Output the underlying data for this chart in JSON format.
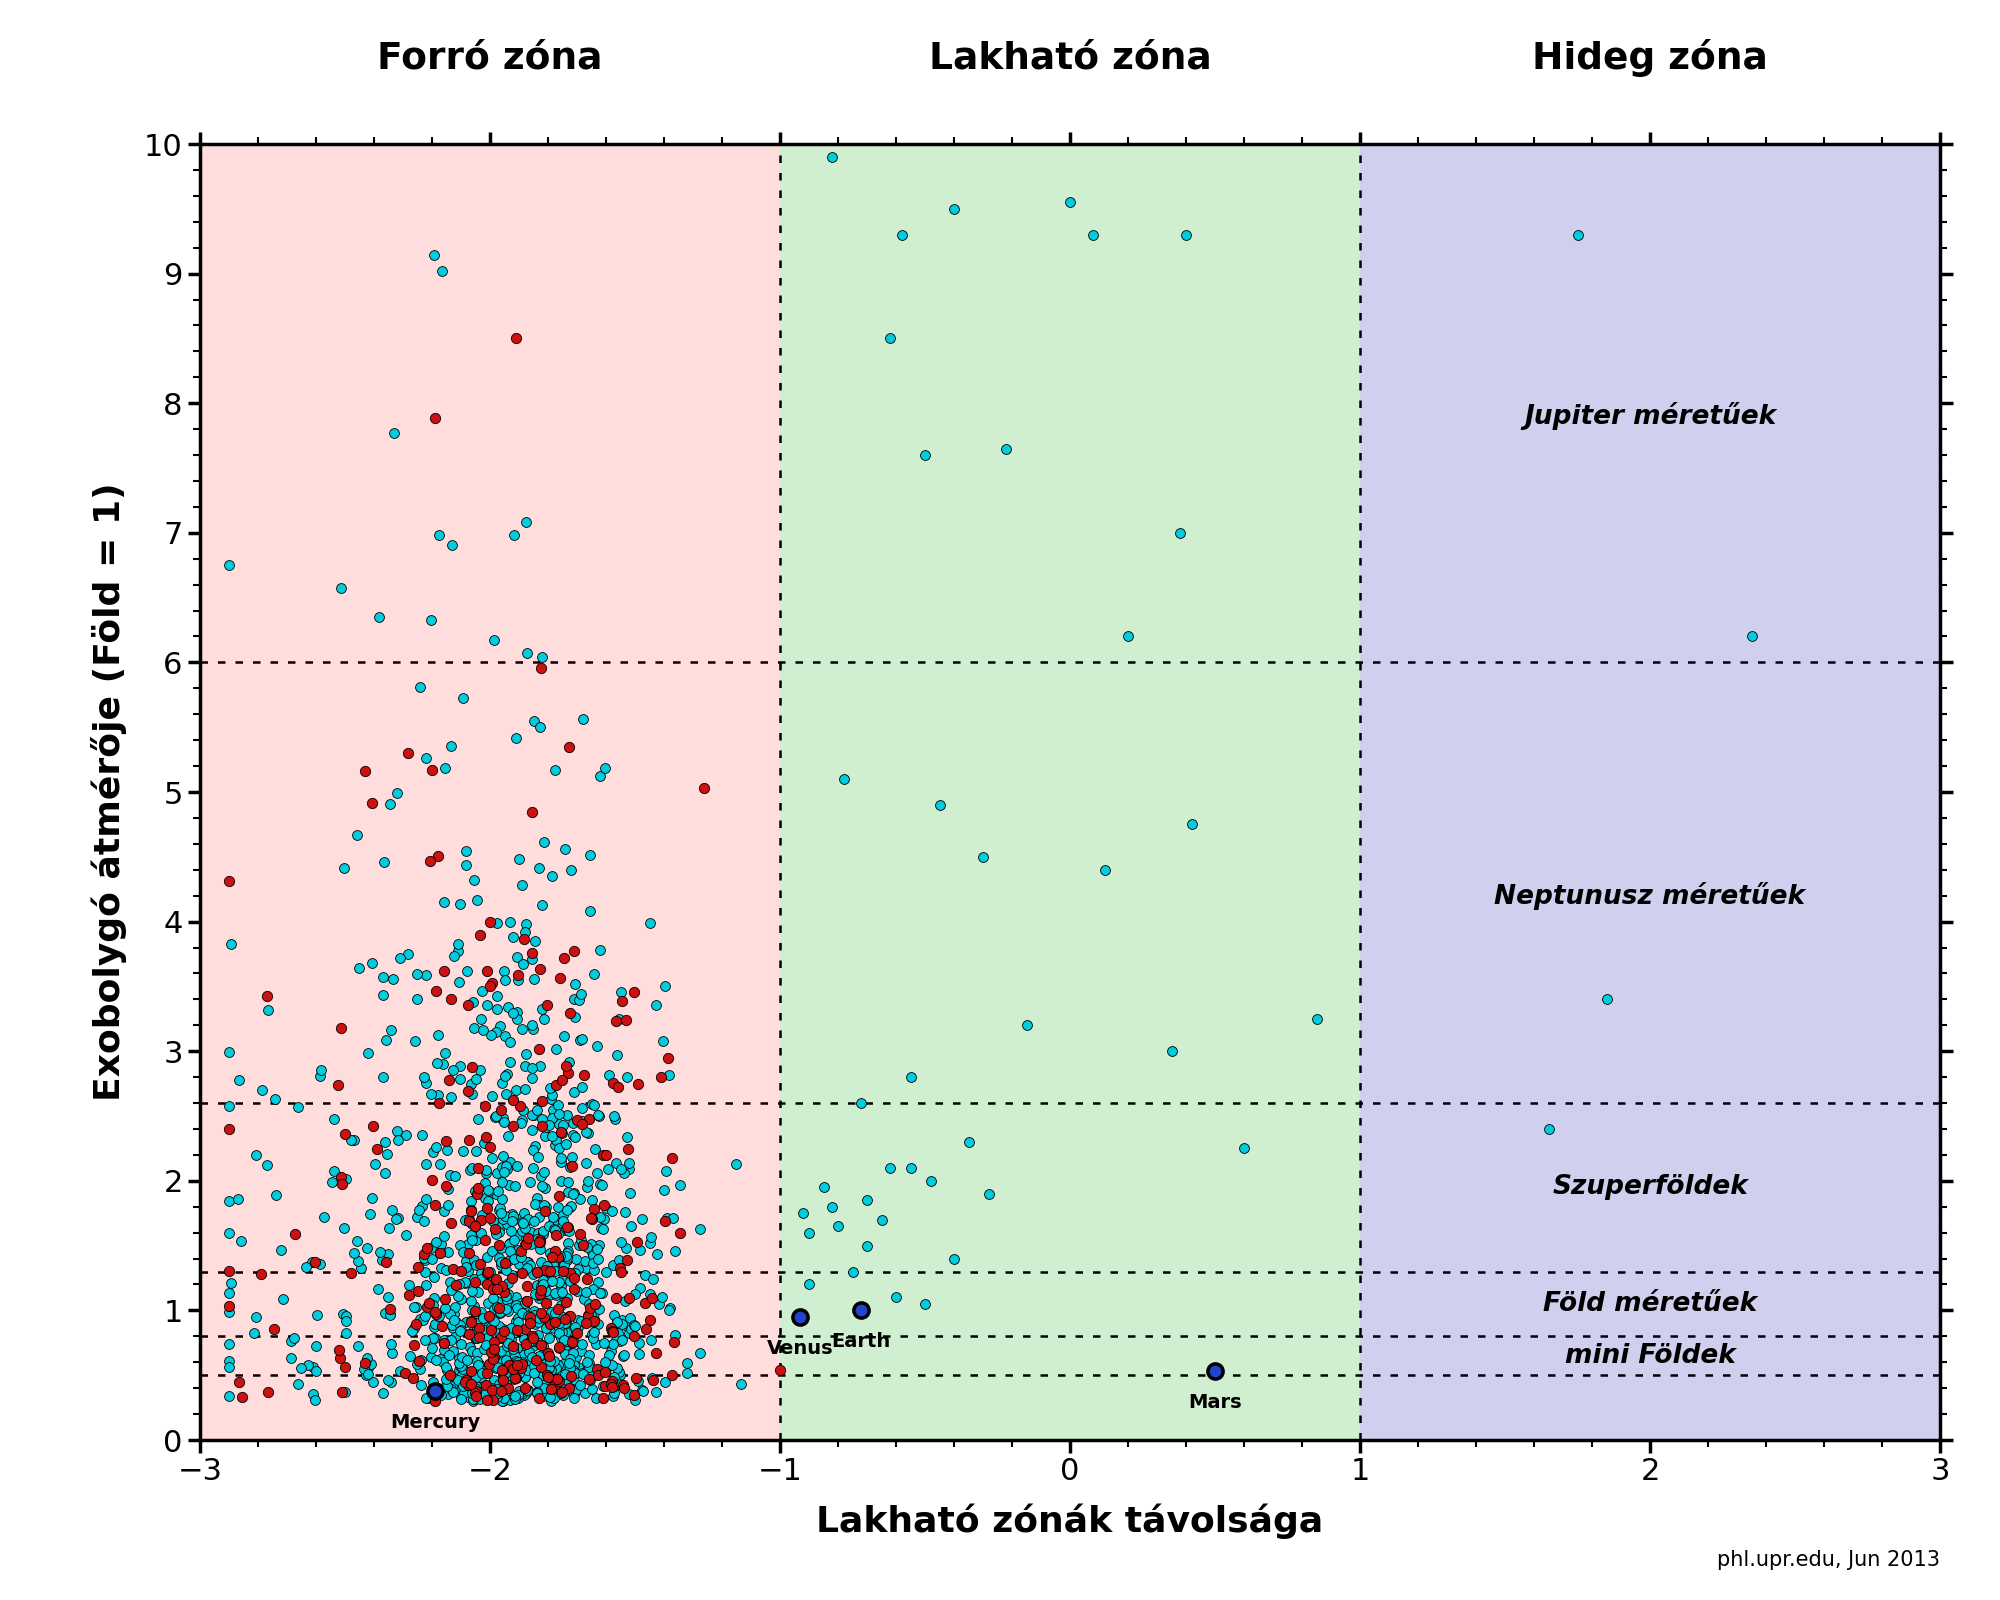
{
  "title_hot": "Forró zóna",
  "title_hab": "Lakható zóna",
  "title_cold": "Hideg zóna",
  "xlabel": "Lakható zónák távolsága",
  "ylabel": "Exobolygó átmérője (Föld = 1)",
  "credit": "phl.upr.edu, Jun 2013",
  "xlim": [
    -3,
    3
  ],
  "ylim": [
    0,
    10
  ],
  "zone_hot_color": "#ffdddd",
  "zone_hab_color": "#d0eed0",
  "zone_cold_color": "#d0d0ee",
  "hline_y": [
    0.5,
    0.8,
    1.3,
    2.6,
    6.0
  ],
  "vline_x": [
    -1.0,
    1.0
  ],
  "label_jupiter": "Jupiter méretűek",
  "label_neptune": "Neptunusz méretűek",
  "label_super": "Szuperföldek",
  "label_earth": "Föld méretűek",
  "label_mini": "mini Földek",
  "planet_mercury_x": -2.19,
  "planet_mercury_y": 0.38,
  "planet_venus_x": -0.93,
  "planet_venus_y": 0.95,
  "planet_earth_x": -0.72,
  "planet_earth_y": 1.0,
  "planet_mars_x": 0.5,
  "planet_mars_y": 0.53,
  "cyan_color": "#00ccdd",
  "red_color": "#cc1111"
}
